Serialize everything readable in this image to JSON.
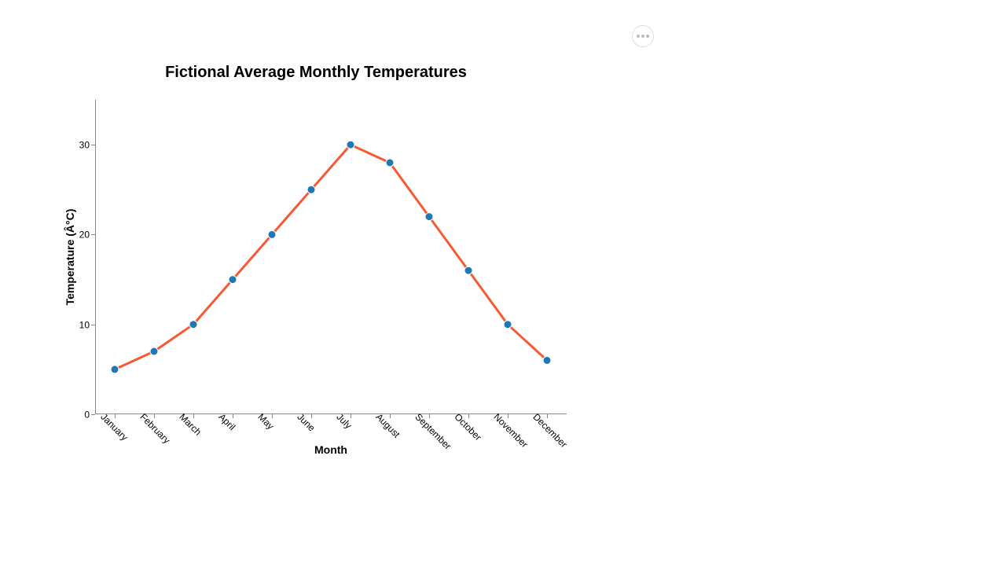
{
  "chart_data": {
    "type": "line",
    "title": "Fictional Average Monthly Temperatures",
    "xlabel": "Month",
    "ylabel": "Temperature (Â°C)",
    "categories": [
      "January",
      "February",
      "March",
      "April",
      "May",
      "June",
      "July",
      "August",
      "September",
      "October",
      "November",
      "December"
    ],
    "series": [
      {
        "values": [
          5,
          7,
          10,
          15,
          20,
          25,
          30,
          28,
          22,
          16,
          10,
          6
        ],
        "line_color": "#f55a33",
        "point_color": "#1f77b4"
      }
    ],
    "ylim": [
      0,
      35
    ],
    "yticks": [
      0,
      10,
      20,
      30
    ],
    "grid": false,
    "legend": "none"
  },
  "toolbar": {
    "menu_icon": "more-horizontal-icon"
  }
}
